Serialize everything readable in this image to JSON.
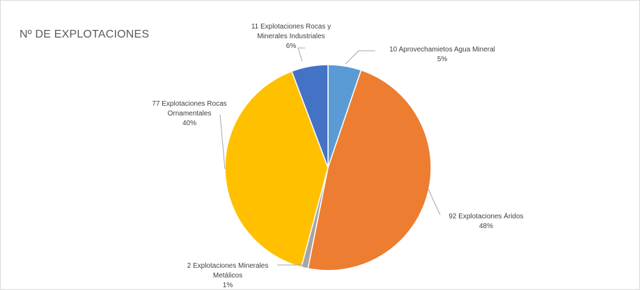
{
  "chart_data": {
    "type": "pie",
    "title": "Nº DE EXPLOTACIONES",
    "slices": [
      {
        "label_lines": [
          "10 Aprovechamietos Agua Mineral"
        ],
        "percent_label": "5%",
        "value": 10,
        "color": "#5b9bd5"
      },
      {
        "label_lines": [
          "92 Explotaciones Áridos"
        ],
        "percent_label": "48%",
        "value": 92,
        "color": "#ed7d31"
      },
      {
        "label_lines": [
          "2 Explotaciones Minerales",
          "Metálicos"
        ],
        "percent_label": "1%",
        "value": 2,
        "color": "#a5a5a5"
      },
      {
        "label_lines": [
          "77 Explotaciones Rocas",
          "Ornamentales"
        ],
        "percent_label": "40%",
        "value": 77,
        "color": "#ffc000"
      },
      {
        "label_lines": [
          "11 Explotaciones Rocas y",
          "Minerales Industriales"
        ],
        "percent_label": "6%",
        "value": 11,
        "color": "#4472c4"
      }
    ]
  }
}
